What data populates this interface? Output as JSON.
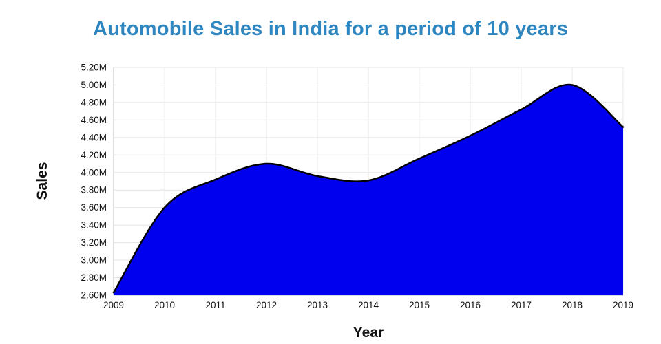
{
  "chart_data": {
    "type": "area",
    "title": "Automobile Sales in India for a period of 10 years",
    "xlabel": "Year",
    "ylabel": "Sales",
    "x": [
      2009,
      2010,
      2011,
      2012,
      2013,
      2014,
      2015,
      2016,
      2017,
      2018,
      2019
    ],
    "x_tick_labels": [
      "2009",
      "2010",
      "2011",
      "2012",
      "2013",
      "2014",
      "2015",
      "2016",
      "2017",
      "2018",
      "2019"
    ],
    "values": [
      2.63,
      3.6,
      3.92,
      4.1,
      3.96,
      3.91,
      4.16,
      4.42,
      4.72,
      5.0,
      4.52
    ],
    "unit": "M",
    "ylim": [
      2.6,
      5.2
    ],
    "ytick_step": 0.2,
    "y_tick_labels": [
      "2.60M",
      "2.80M",
      "3.00M",
      "3.20M",
      "3.40M",
      "3.60M",
      "3.80M",
      "4.00M",
      "4.20M",
      "4.40M",
      "4.60M",
      "4.80M",
      "5.00M",
      "5.20M"
    ],
    "grid": true,
    "legend": "none",
    "fill_color": "#0000EE",
    "line_color": "#000000",
    "title_color": "#2E86C1"
  }
}
